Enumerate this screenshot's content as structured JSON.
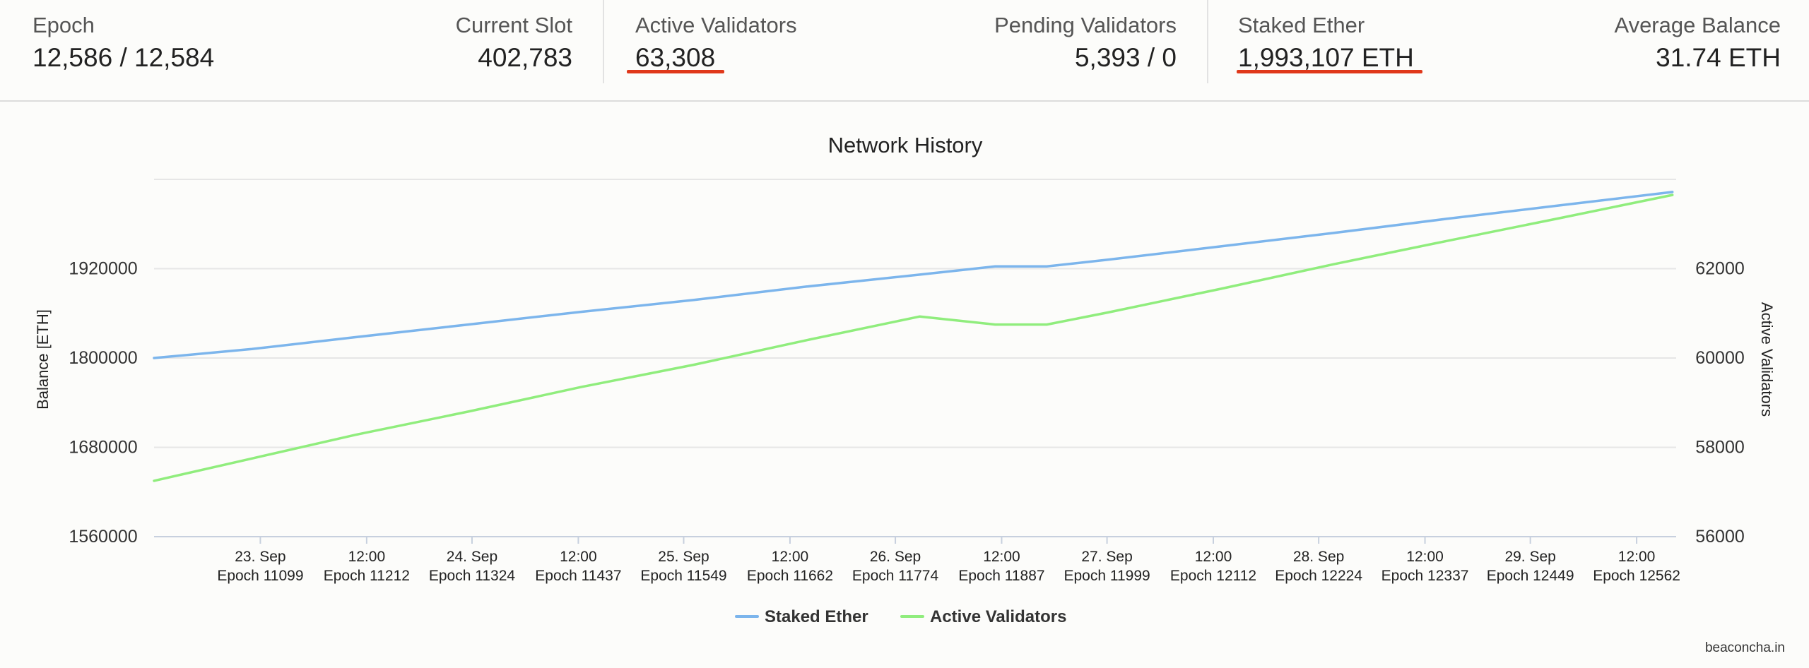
{
  "stats": {
    "epoch": {
      "label": "Epoch",
      "value": "12,586 / 12,584"
    },
    "current_slot": {
      "label": "Current Slot",
      "value": "402,783"
    },
    "active_validators": {
      "label": "Active Validators",
      "value": "63,308"
    },
    "pending_validators": {
      "label": "Pending Validators",
      "value": "5,393 / 0"
    },
    "staked_ether": {
      "label": "Staked Ether",
      "value": "1,993,107 ETH"
    },
    "average_balance": {
      "label": "Average Balance",
      "value": "31.74 ETH"
    }
  },
  "colors": {
    "staked_ether": "#7cb5ec",
    "active_validators": "#90ed7d",
    "highlight_underline": "#e0381a"
  },
  "watermark": "beaconcha.in",
  "chart_data": {
    "type": "line",
    "title": "Network History",
    "ylabel": "Balance [ETH]",
    "y2label": "Active Validators",
    "ylim": [
      1560000,
      2040000
    ],
    "y2lim": [
      56000,
      64000
    ],
    "yticks": [
      "1560000",
      "1680000",
      "1800000",
      "1920000"
    ],
    "y2ticks": [
      "56000",
      "58000",
      "60000",
      "62000"
    ],
    "grid": true,
    "legend": "bottom-center",
    "xlim": [
      10986,
      12604
    ],
    "x_ticks": [
      {
        "epoch": 11099,
        "top": "23. Sep",
        "bottom": "Epoch 11099"
      },
      {
        "epoch": 11212,
        "top": "12:00",
        "bottom": "Epoch 11212"
      },
      {
        "epoch": 11324,
        "top": "24. Sep",
        "bottom": "Epoch 11324"
      },
      {
        "epoch": 11437,
        "top": "12:00",
        "bottom": "Epoch 11437"
      },
      {
        "epoch": 11549,
        "top": "25. Sep",
        "bottom": "Epoch 11549"
      },
      {
        "epoch": 11662,
        "top": "12:00",
        "bottom": "Epoch 11662"
      },
      {
        "epoch": 11774,
        "top": "26. Sep",
        "bottom": "Epoch 11774"
      },
      {
        "epoch": 11887,
        "top": "12:00",
        "bottom": "Epoch 11887"
      },
      {
        "epoch": 11999,
        "top": "27. Sep",
        "bottom": "Epoch 11999"
      },
      {
        "epoch": 12112,
        "top": "12:00",
        "bottom": "Epoch 12112"
      },
      {
        "epoch": 12224,
        "top": "28. Sep",
        "bottom": "Epoch 12224"
      },
      {
        "epoch": 12337,
        "top": "12:00",
        "bottom": "Epoch 12337"
      },
      {
        "epoch": 12449,
        "top": "29. Sep",
        "bottom": "Epoch 12449"
      },
      {
        "epoch": 12562,
        "top": "12:00",
        "bottom": "Epoch 12562"
      }
    ],
    "series": [
      {
        "name": "Staked Ether",
        "axis": "left",
        "x": [
          10986,
          11090,
          11200,
          11320,
          11440,
          11560,
          11680,
          11800,
          11880,
          11935,
          12000,
          12120,
          12240,
          12360,
          12480,
          12600
        ],
        "values": [
          1800000,
          1812000,
          1828000,
          1845000,
          1862000,
          1878000,
          1896000,
          1912000,
          1923000,
          1923000,
          1932000,
          1950000,
          1968000,
          1987000,
          2005000,
          2023000
        ]
      },
      {
        "name": "Active Validators",
        "axis": "right",
        "x": [
          10986,
          11090,
          11200,
          11320,
          11440,
          11560,
          11680,
          11800,
          11880,
          11935,
          12000,
          12120,
          12240,
          12360,
          12480,
          12600
        ],
        "values": [
          57250,
          57750,
          58280,
          58800,
          59350,
          59850,
          60400,
          60930,
          60750,
          60750,
          61020,
          61550,
          62100,
          62620,
          63130,
          63650
        ]
      }
    ]
  }
}
